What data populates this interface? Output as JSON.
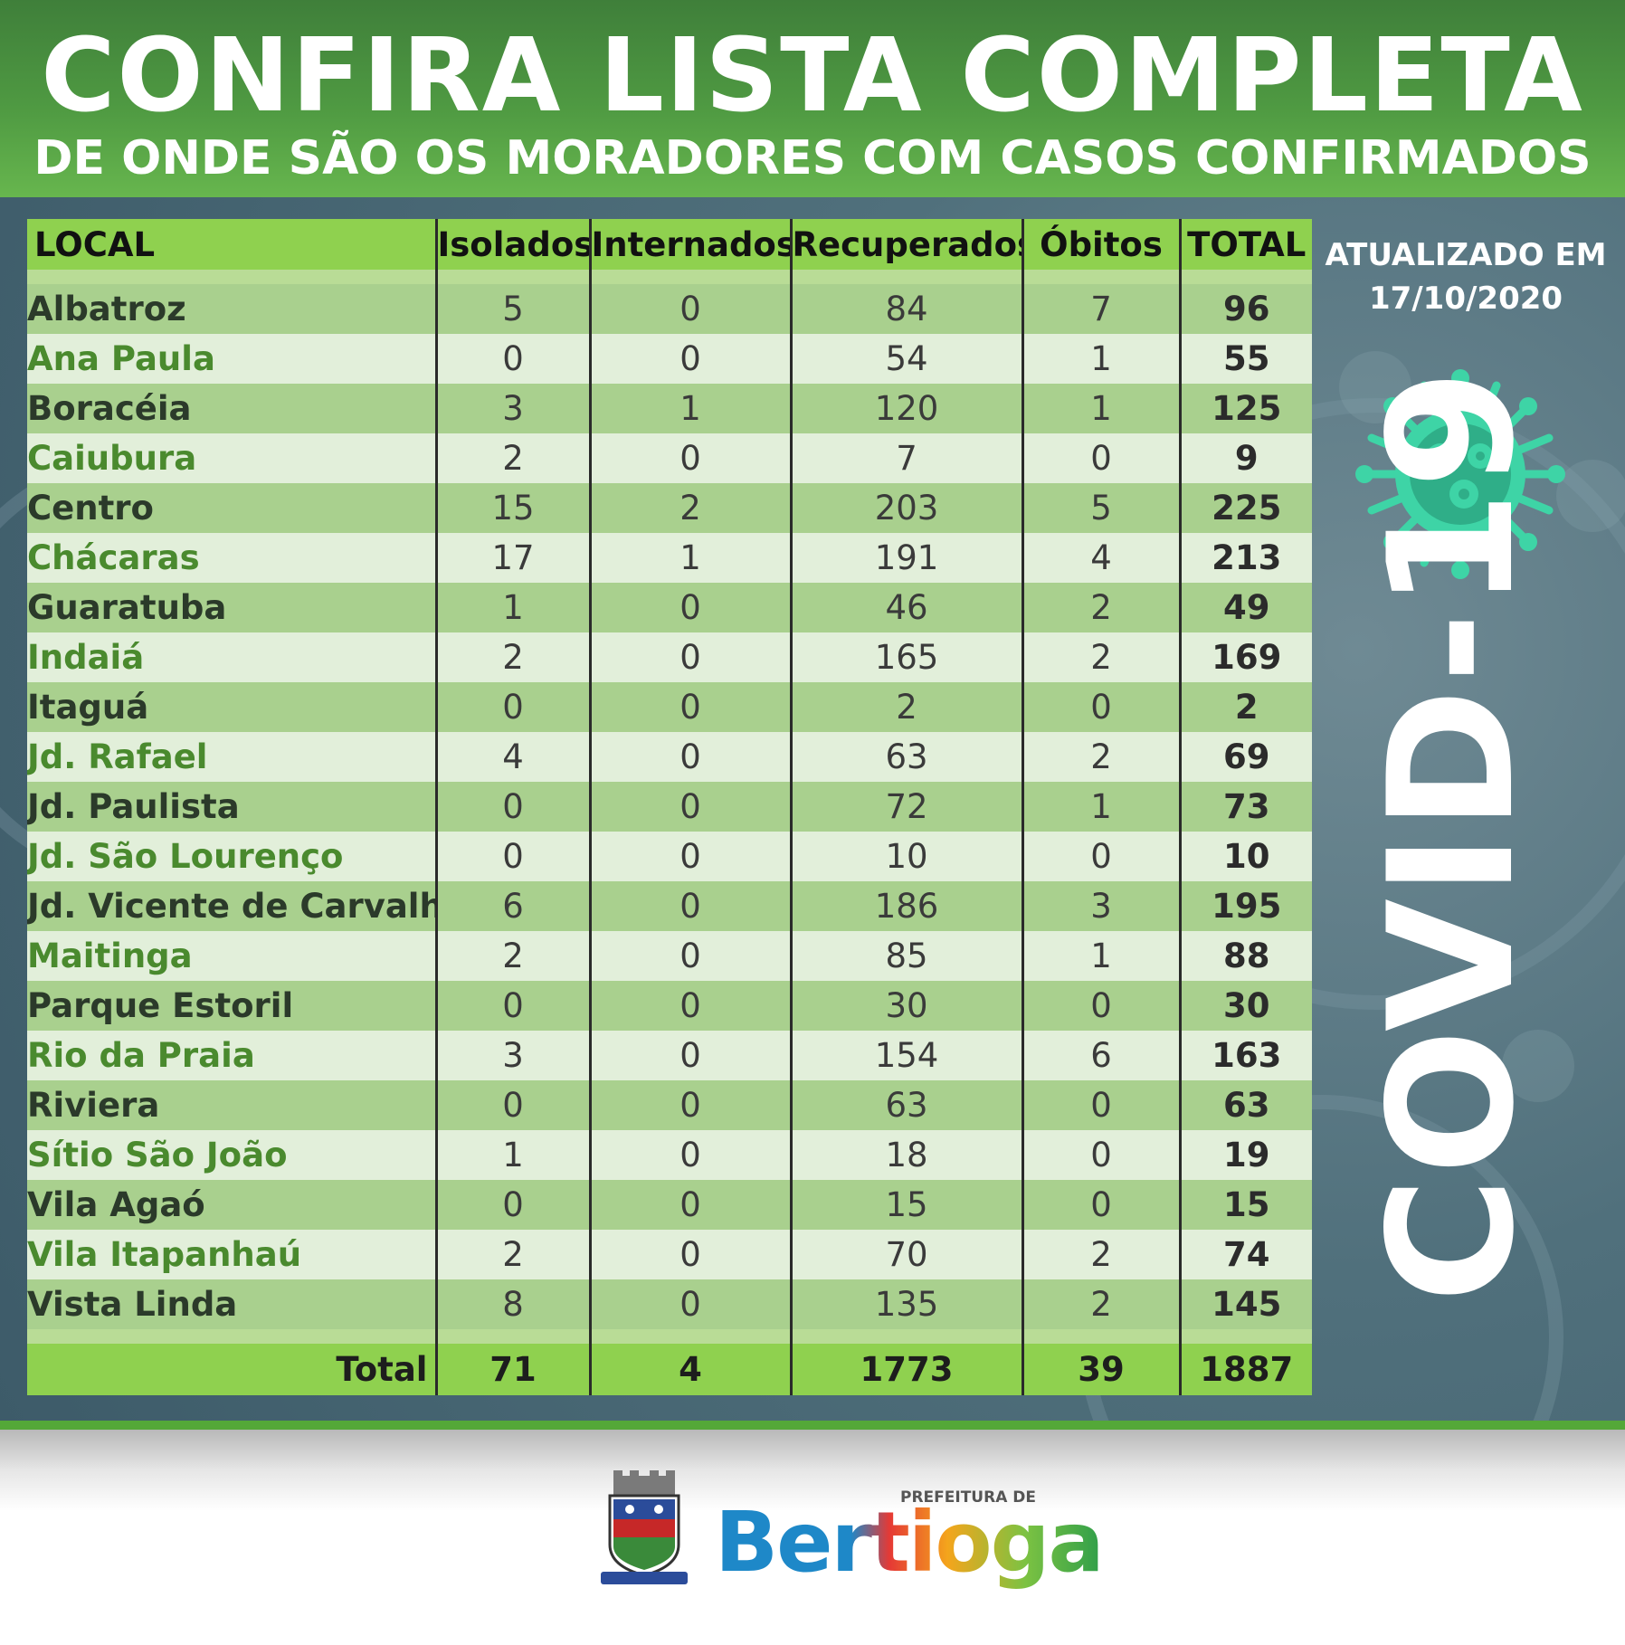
{
  "header": {
    "title": "CONFIRA LISTA COMPLETA",
    "subtitle": "DE ONDE SÃO OS MORADORES COM CASOS CONFIRMADOS"
  },
  "table": {
    "headers": [
      "LOCAL",
      "Isolados",
      "Internados",
      "Recuperados",
      "Óbitos",
      "TOTAL"
    ],
    "rows": [
      {
        "local": "Albatroz",
        "isolados": "5",
        "internados": "0",
        "recuperados": "84",
        "obitos": "7",
        "total": "96"
      },
      {
        "local": "Ana Paula",
        "isolados": "0",
        "internados": "0",
        "recuperados": "54",
        "obitos": "1",
        "total": "55"
      },
      {
        "local": "Boracéia",
        "isolados": "3",
        "internados": "1",
        "recuperados": "120",
        "obitos": "1",
        "total": "125"
      },
      {
        "local": "Caiubura",
        "isolados": "2",
        "internados": "0",
        "recuperados": "7",
        "obitos": "0",
        "total": "9"
      },
      {
        "local": "Centro",
        "isolados": "15",
        "internados": "2",
        "recuperados": "203",
        "obitos": "5",
        "total": "225"
      },
      {
        "local": "Chácaras",
        "isolados": "17",
        "internados": "1",
        "recuperados": "191",
        "obitos": "4",
        "total": "213"
      },
      {
        "local": "Guaratuba",
        "isolados": "1",
        "internados": "0",
        "recuperados": "46",
        "obitos": "2",
        "total": "49"
      },
      {
        "local": "Indaiá",
        "isolados": "2",
        "internados": "0",
        "recuperados": "165",
        "obitos": "2",
        "total": "169"
      },
      {
        "local": "Itaguá",
        "isolados": "0",
        "internados": "0",
        "recuperados": "2",
        "obitos": "0",
        "total": "2"
      },
      {
        "local": "Jd. Rafael",
        "isolados": "4",
        "internados": "0",
        "recuperados": "63",
        "obitos": "2",
        "total": "69"
      },
      {
        "local": "Jd. Paulista",
        "isolados": "0",
        "internados": "0",
        "recuperados": "72",
        "obitos": "1",
        "total": "73"
      },
      {
        "local": "Jd. São Lourenço",
        "isolados": "0",
        "internados": "0",
        "recuperados": "10",
        "obitos": "0",
        "total": "10"
      },
      {
        "local": "Jd. Vicente de Carvalho",
        "isolados": "6",
        "internados": "0",
        "recuperados": "186",
        "obitos": "3",
        "total": "195"
      },
      {
        "local": "Maitinga",
        "isolados": "2",
        "internados": "0",
        "recuperados": "85",
        "obitos": "1",
        "total": "88"
      },
      {
        "local": "Parque Estoril",
        "isolados": "0",
        "internados": "0",
        "recuperados": "30",
        "obitos": "0",
        "total": "30"
      },
      {
        "local": "Rio da Praia",
        "isolados": "3",
        "internados": "0",
        "recuperados": "154",
        "obitos": "6",
        "total": "163"
      },
      {
        "local": "Riviera",
        "isolados": "0",
        "internados": "0",
        "recuperados": "63",
        "obitos": "0",
        "total": "63"
      },
      {
        "local": "Sítio São João",
        "isolados": "1",
        "internados": "0",
        "recuperados": "18",
        "obitos": "0",
        "total": "19"
      },
      {
        "local": "Vila Agaó",
        "isolados": "0",
        "internados": "0",
        "recuperados": "15",
        "obitos": "0",
        "total": "15"
      },
      {
        "local": "Vila Itapanhaú",
        "isolados": "2",
        "internados": "0",
        "recuperados": "70",
        "obitos": "2",
        "total": "74"
      },
      {
        "local": "Vista Linda",
        "isolados": "8",
        "internados": "0",
        "recuperados": "135",
        "obitos": "2",
        "total": "145"
      }
    ],
    "totals": {
      "label": "Total",
      "isolados": "71",
      "internados": "4",
      "recuperados": "1773",
      "obitos": "39",
      "total": "1887"
    }
  },
  "side": {
    "updated_line1": "ATUALIZADO EM",
    "updated_line2": "17/10/2020",
    "covid_label": "COVID-19",
    "virus_icon": "virus-icon"
  },
  "footer": {
    "prefix": "PREFEITURA DE",
    "brand": "Bertioga",
    "coat_icon": "coat-of-arms-icon"
  },
  "colors": {
    "header_green": "#4f9a42",
    "table_header_green": "#8fd14f",
    "row_dark": "#a9d08e",
    "row_light": "#e2efda",
    "background_slate": "#50707c",
    "virus_teal": "#3ed4a6"
  }
}
